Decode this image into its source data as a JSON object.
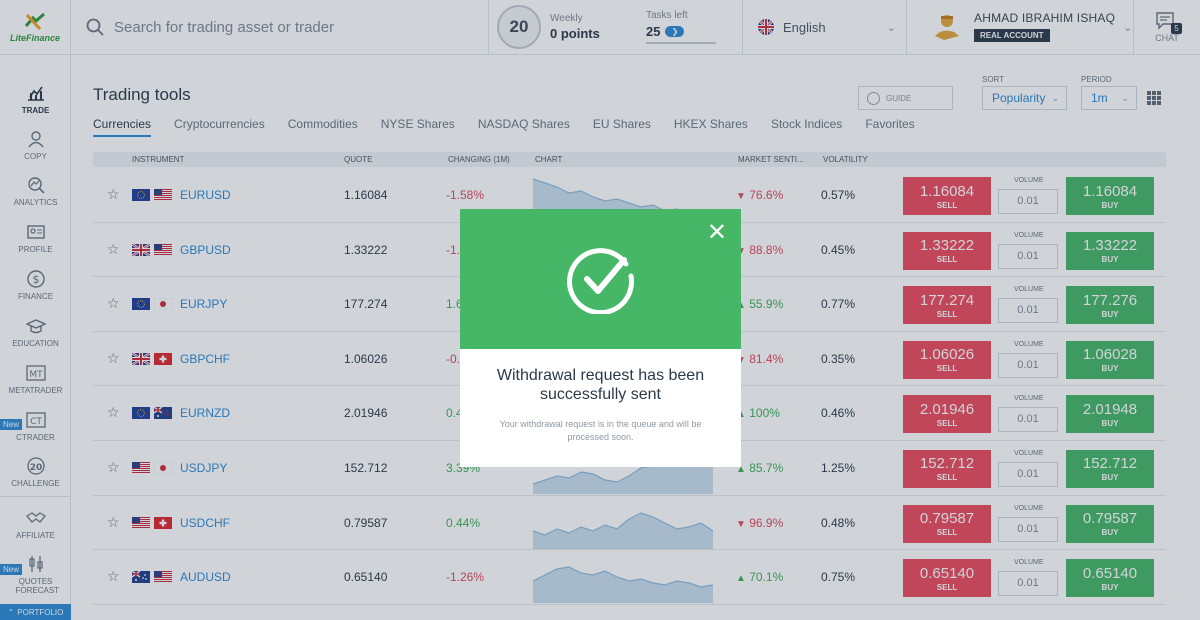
{
  "brand": {
    "name": "LiteFinance"
  },
  "search": {
    "placeholder": "Search for trading asset or trader"
  },
  "weekly": {
    "badge": "20",
    "label": "Weekly",
    "value": "0 points",
    "tasks_label": "Tasks left",
    "tasks_value": "25"
  },
  "language": {
    "label": "English"
  },
  "account": {
    "name": "AHMAD IBRAHIM ISHAQ",
    "type": "REAL ACCOUNT"
  },
  "chat": {
    "label": "CHAT",
    "count": "5"
  },
  "sidebar": {
    "items": [
      {
        "label": "TRADE",
        "icon": "chart-icon"
      },
      {
        "label": "COPY",
        "icon": "user-icon"
      },
      {
        "label": "ANALYTICS",
        "icon": "analytics-icon"
      },
      {
        "label": "PROFILE",
        "icon": "profile-icon"
      },
      {
        "label": "FINANCE",
        "icon": "dollar-icon"
      },
      {
        "label": "EDUCATION",
        "icon": "graduation-cap-icon"
      },
      {
        "label": "METATRADER",
        "icon": "mt-icon"
      },
      {
        "label": "CTRADER",
        "icon": "ct-icon"
      },
      {
        "label": "CHALLENGE",
        "icon": "trophy-icon"
      },
      {
        "label": "AFFILIATE",
        "icon": "handshake-icon"
      },
      {
        "label": "QUOTES FORECAST",
        "icon": "forecast-icon"
      }
    ],
    "new_badge": "New",
    "portfolio": "PORTFOLIO"
  },
  "page": {
    "title": "Trading tools",
    "guide": "GUIDE",
    "sort_label": "SORT",
    "sort_value": "Popularity",
    "period_label": "PERIOD",
    "period_value": "1m"
  },
  "tabs": [
    "Currencies",
    "Cryptocurrencies",
    "Commodities",
    "NYSE Shares",
    "NASDAQ Shares",
    "EU Shares",
    "HKEX Shares",
    "Stock Indices",
    "Favorites"
  ],
  "table": {
    "headers": {
      "instrument": "INSTRUMENT",
      "quote": "QUOTE",
      "changing": "CHANGING (1M)",
      "chart": "CHART",
      "sentiment": "MARKET SENTI...",
      "volatility": "VOLATILITY"
    },
    "volume_label": "VOLUME",
    "sell_label": "SELL",
    "buy_label": "BUY",
    "rows": [
      {
        "symbol": "EURUSD",
        "quote": "1.16084",
        "change": "-1.58%",
        "sentiment": "76.6%",
        "sent_dir": "down",
        "volatility": "0.57%",
        "sell": "1.16084",
        "buy": "1.16084",
        "volume": "0.01",
        "flags": [
          "eu",
          "us"
        ]
      },
      {
        "symbol": "GBPUSD",
        "quote": "1.33222",
        "change": "-1.",
        "sentiment": "88.8%",
        "sent_dir": "down",
        "volatility": "0.45%",
        "sell": "1.33222",
        "buy": "1.33222",
        "volume": "0.01",
        "flags": [
          "gb",
          "us"
        ]
      },
      {
        "symbol": "EURJPY",
        "quote": "177.274",
        "change": "1.6",
        "sentiment": "55.9%",
        "sent_dir": "up",
        "volatility": "0.77%",
        "sell": "177.274",
        "buy": "177.276",
        "volume": "0.01",
        "flags": [
          "eu",
          "jp"
        ]
      },
      {
        "symbol": "GBPCHF",
        "quote": "1.06026",
        "change": "-0.",
        "sentiment": "81.4%",
        "sent_dir": "down",
        "volatility": "0.35%",
        "sell": "1.06026",
        "buy": "1.06028",
        "volume": "0.01",
        "flags": [
          "gb",
          "ch"
        ]
      },
      {
        "symbol": "EURNZD",
        "quote": "2.01946",
        "change": "0.4",
        "sentiment": "100%",
        "sent_dir": "up",
        "volatility": "0.46%",
        "sell": "2.01946",
        "buy": "2.01948",
        "volume": "0.01",
        "flags": [
          "eu",
          "nz"
        ]
      },
      {
        "symbol": "USDJPY",
        "quote": "152.712",
        "change": "3.39%",
        "sentiment": "85.7%",
        "sent_dir": "up",
        "volatility": "1.25%",
        "sell": "152.712",
        "buy": "152.712",
        "volume": "0.01",
        "flags": [
          "us",
          "jp"
        ]
      },
      {
        "symbol": "USDCHF",
        "quote": "0.79587",
        "change": "0.44%",
        "sentiment": "96.9%",
        "sent_dir": "down",
        "volatility": "0.48%",
        "sell": "0.79587",
        "buy": "0.79587",
        "volume": "0.01",
        "flags": [
          "us",
          "ch"
        ]
      },
      {
        "symbol": "AUDUSD",
        "quote": "0.65140",
        "change": "-1.26%",
        "sentiment": "70.1%",
        "sent_dir": "up",
        "volatility": "0.75%",
        "sell": "0.65140",
        "buy": "0.65140",
        "volume": "0.01",
        "flags": [
          "au",
          "us"
        ]
      }
    ]
  },
  "modal": {
    "title": "Withdrawal request has been successfully sent",
    "text": "Your withdrawal request is in the queue and will be processed soon."
  },
  "colors": {
    "accent": "#2c8bd6",
    "sell": "#ee4b5d",
    "buy": "#45b766",
    "negative": "#e04a5a",
    "positive": "#3fae5a"
  }
}
